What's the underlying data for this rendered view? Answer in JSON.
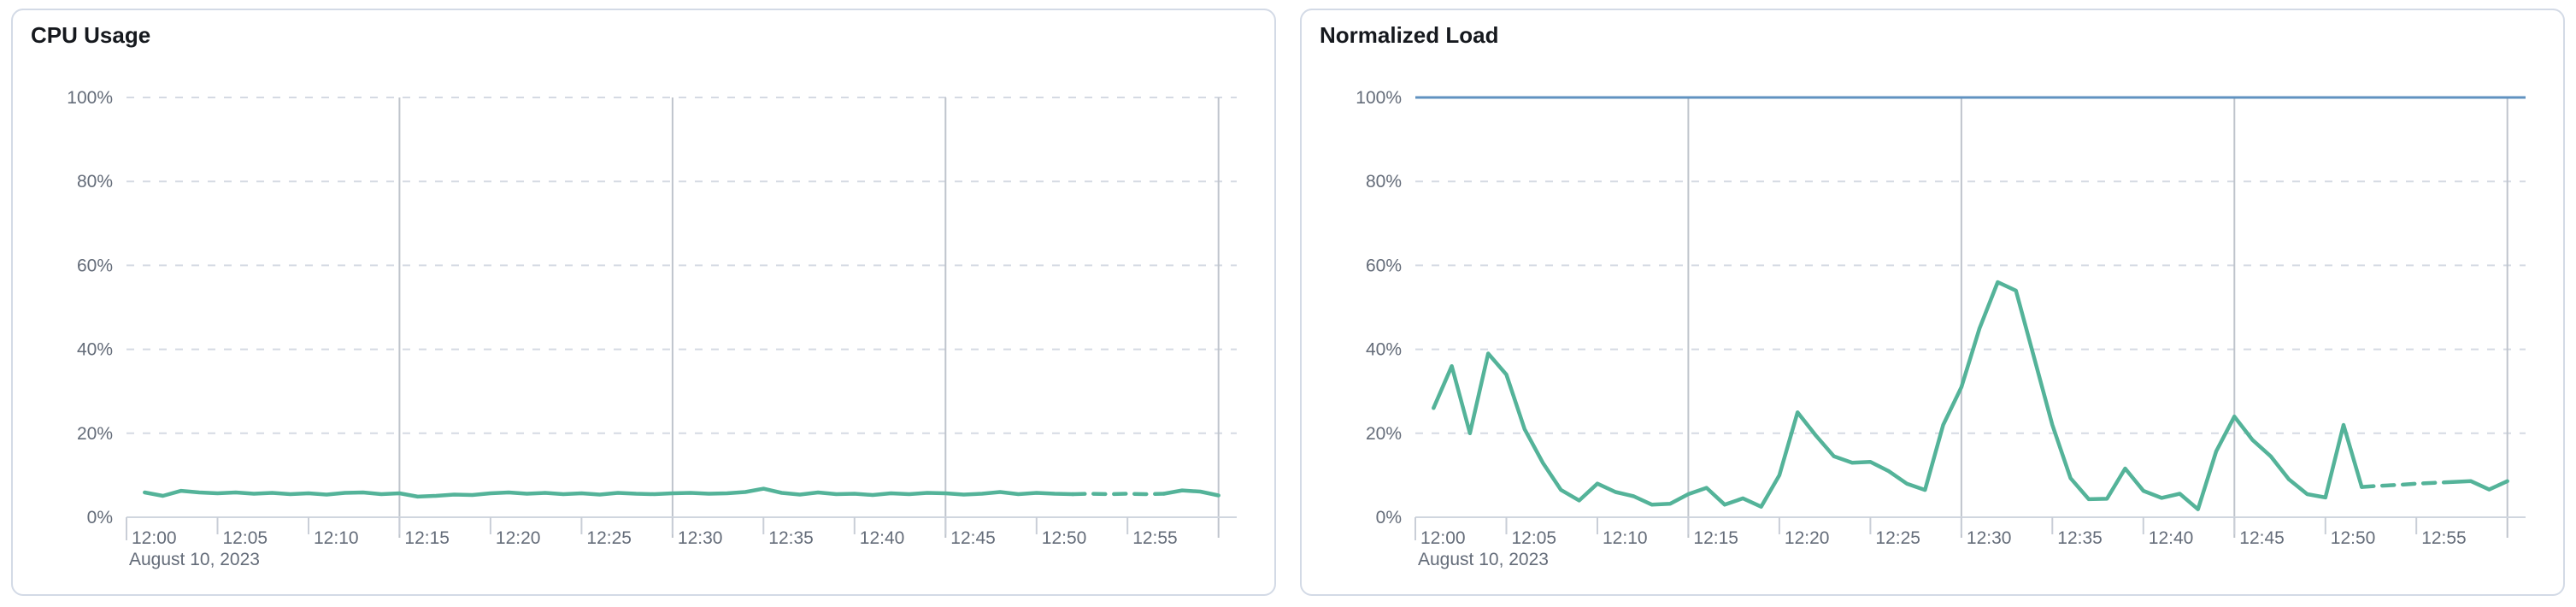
{
  "page": {
    "background": "#ffffff"
  },
  "style": {
    "card_background": "#ffffff",
    "card_border": "#d3dae6",
    "title_color": "#16191e",
    "axis_label_color": "#646c79",
    "grid_dashed_color": "#d5dae3",
    "grid_vertical_color": "#bfc4cc",
    "axis_line_color": "#d0d6df",
    "tick_color": "#c9ced7",
    "series_green": "#54b399",
    "threshold_blue": "#6092c0"
  },
  "chart_data": [
    {
      "type": "line",
      "title": "CPU Usage",
      "legend": "none",
      "grid": true,
      "x_axis": {
        "start_time": "12:00",
        "end_time": "13:00",
        "date_label": "August 10, 2023",
        "domain_minutes": [
          0,
          61
        ],
        "tick_minutes": [
          0,
          5,
          10,
          15,
          20,
          25,
          30,
          35,
          40,
          45,
          50,
          55
        ],
        "tick_labels": [
          "12:00",
          "12:05",
          "12:10",
          "12:15",
          "12:20",
          "12:25",
          "12:30",
          "12:35",
          "12:40",
          "12:45",
          "12:50",
          "12:55"
        ],
        "grid_minutes": [
          15,
          30,
          45,
          60
        ]
      },
      "y_axis": {
        "domain": [
          0,
          100
        ],
        "tick_values": [
          100,
          80,
          60,
          40,
          20,
          0
        ],
        "tick_labels": [
          "100%",
          "80%",
          "60%",
          "40%",
          "20%",
          "0%"
        ]
      },
      "series": [
        {
          "name": "cpu-usage",
          "kind": "data",
          "color": "#54b399",
          "line_width": 4.5,
          "dashed_minutes": [
            52,
            57
          ],
          "x_minutes": [
            1,
            2,
            3,
            4,
            5,
            6,
            7,
            8,
            9,
            10,
            11,
            12,
            13,
            14,
            15,
            16,
            17,
            18,
            19,
            20,
            21,
            22,
            23,
            24,
            25,
            26,
            27,
            28,
            29,
            30,
            31,
            32,
            33,
            34,
            35,
            36,
            37,
            38,
            39,
            40,
            41,
            42,
            43,
            44,
            45,
            46,
            47,
            48,
            49,
            50,
            51,
            52,
            53,
            54,
            55,
            56,
            57,
            58,
            59,
            60
          ],
          "values": [
            5.9,
            5.1,
            6.3,
            5.9,
            5.7,
            5.9,
            5.6,
            5.8,
            5.5,
            5.7,
            5.4,
            5.8,
            5.9,
            5.5,
            5.7,
            4.9,
            5.1,
            5.4,
            5.3,
            5.7,
            5.9,
            5.6,
            5.8,
            5.5,
            5.7,
            5.4,
            5.8,
            5.6,
            5.5,
            5.7,
            5.8,
            5.6,
            5.7,
            6.0,
            6.8,
            5.8,
            5.4,
            5.9,
            5.5,
            5.6,
            5.3,
            5.7,
            5.5,
            5.8,
            5.7,
            5.4,
            5.6,
            6.0,
            5.5,
            5.8,
            5.6,
            5.5,
            5.6,
            5.5,
            5.6,
            5.5,
            5.6,
            6.4,
            6.1,
            5.2
          ]
        }
      ]
    },
    {
      "type": "line",
      "title": "Normalized Load",
      "legend": "none",
      "grid": true,
      "x_axis": {
        "start_time": "12:00",
        "end_time": "13:00",
        "date_label": "August 10, 2023",
        "domain_minutes": [
          0,
          61
        ],
        "tick_minutes": [
          0,
          5,
          10,
          15,
          20,
          25,
          30,
          35,
          40,
          45,
          50,
          55
        ],
        "tick_labels": [
          "12:00",
          "12:05",
          "12:10",
          "12:15",
          "12:20",
          "12:25",
          "12:30",
          "12:35",
          "12:40",
          "12:45",
          "12:50",
          "12:55"
        ],
        "grid_minutes": [
          15,
          30,
          45,
          60
        ]
      },
      "y_axis": {
        "domain": [
          0,
          100
        ],
        "tick_values": [
          100,
          80,
          60,
          40,
          20,
          0
        ],
        "tick_labels": [
          "100%",
          "80%",
          "60%",
          "40%",
          "20%",
          "0%"
        ]
      },
      "series": [
        {
          "name": "normalized-load",
          "kind": "data",
          "color": "#54b399",
          "line_width": 4.5,
          "dashed_minutes": [
            52,
            57
          ],
          "x_minutes": [
            1,
            2,
            3,
            4,
            5,
            6,
            7,
            8,
            9,
            10,
            11,
            12,
            13,
            14,
            15,
            16,
            17,
            18,
            19,
            20,
            21,
            22,
            23,
            24,
            25,
            26,
            27,
            28,
            29,
            30,
            31,
            32,
            33,
            34,
            35,
            36,
            37,
            38,
            39,
            40,
            41,
            42,
            43,
            44,
            45,
            46,
            47,
            48,
            49,
            50,
            51,
            52,
            53,
            54,
            55,
            56,
            57,
            58,
            59,
            60
          ],
          "values": [
            26,
            36,
            20,
            39,
            34,
            21,
            13,
            6.5,
            4,
            8,
            6,
            5,
            3,
            3.2,
            5.5,
            7,
            3,
            4.5,
            2.5,
            10,
            25,
            19.5,
            14.5,
            13,
            13.2,
            11,
            8,
            6.5,
            22,
            31,
            45,
            56,
            54,
            38,
            22,
            9.3,
            4.3,
            4.4,
            11.6,
            6.3,
            4.6,
            5.6,
            1.9,
            15.7,
            24,
            18.4,
            14.5,
            9,
            5.5,
            4.7,
            22,
            7.2,
            7.5,
            7.7,
            8,
            8.2,
            8.4,
            8.6,
            6.6,
            8.6
          ]
        },
        {
          "name": "load-limit",
          "kind": "threshold",
          "color": "#6092c0",
          "line_width": 3,
          "value": 100
        }
      ]
    }
  ]
}
